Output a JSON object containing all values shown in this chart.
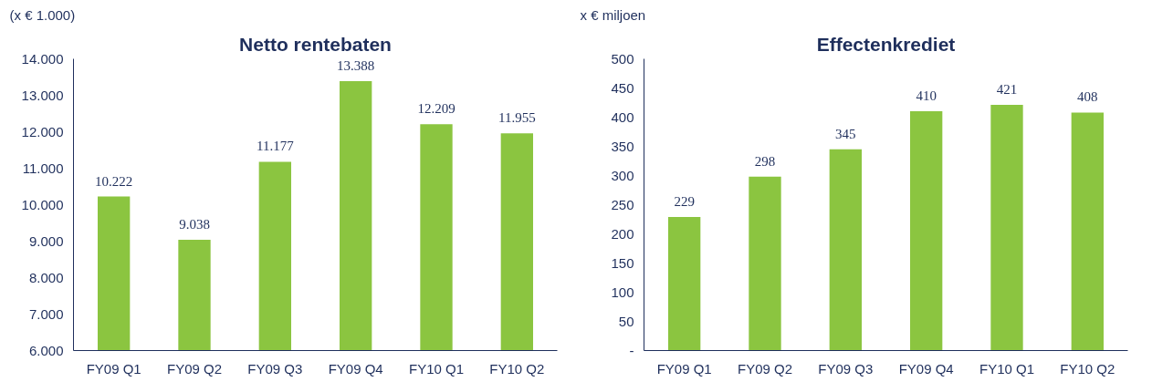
{
  "chart_data": [
    {
      "type": "bar",
      "title": "Netto rentebaten",
      "ylabel": "(x € 1.000)",
      "categories": [
        "FY09 Q1",
        "FY09 Q2",
        "FY09 Q3",
        "FY09 Q4",
        "FY10 Q1",
        "FY10 Q2"
      ],
      "values": [
        10222,
        9038,
        11177,
        13388,
        12209,
        11955
      ],
      "value_labels": [
        "10.222",
        "9.038",
        "11.177",
        "13.388",
        "12.209",
        "11.955"
      ],
      "color": "#8bc540",
      "ylim": [
        6000,
        14000
      ],
      "yticks": [
        {
          "value": 6000,
          "label": "6.000"
        },
        {
          "value": 7000,
          "label": "7.000"
        },
        {
          "value": 8000,
          "label": "8.000"
        },
        {
          "value": 9000,
          "label": "9.000"
        },
        {
          "value": 10000,
          "label": "10.000"
        },
        {
          "value": 11000,
          "label": "11.000"
        },
        {
          "value": 12000,
          "label": "12.000"
        },
        {
          "value": 13000,
          "label": "13.000"
        },
        {
          "value": 14000,
          "label": "14.000"
        }
      ]
    },
    {
      "type": "bar",
      "title": "Effectenkrediet",
      "ylabel": "x € miljoen",
      "categories": [
        "FY09 Q1",
        "FY09 Q2",
        "FY09 Q3",
        "FY09 Q4",
        "FY10 Q1",
        "FY10 Q2"
      ],
      "values": [
        229,
        298,
        345,
        410,
        421,
        408
      ],
      "data_labels": true,
      "color": "#8bc540",
      "ylim": [
        0,
        500
      ],
      "yticks": [
        {
          "value": 0,
          "label": "-"
        },
        50,
        100,
        150,
        200,
        250,
        300,
        350,
        400,
        450,
        500
      ]
    }
  ]
}
